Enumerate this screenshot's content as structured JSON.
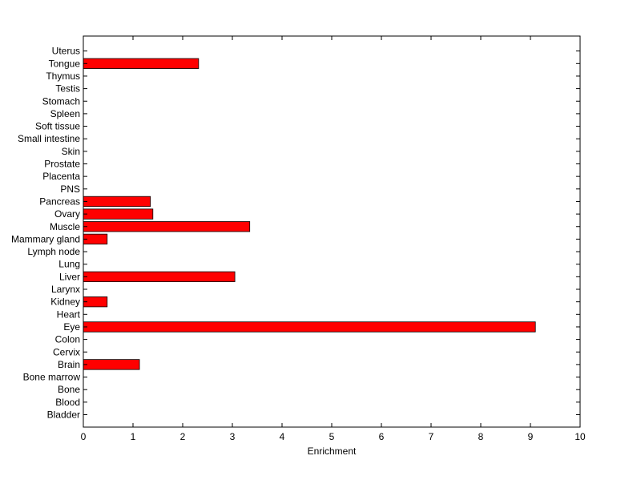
{
  "chart_data": {
    "type": "bar",
    "orientation": "horizontal",
    "categories": [
      "Bladder",
      "Blood",
      "Bone",
      "Bone marrow",
      "Brain",
      "Cervix",
      "Colon",
      "Eye",
      "Heart",
      "Kidney",
      "Larynx",
      "Liver",
      "Lung",
      "Lymph node",
      "Mammary gland",
      "Muscle",
      "Ovary",
      "Pancreas",
      "PNS",
      "Placenta",
      "Prostate",
      "Skin",
      "Small intestine",
      "Soft tissue",
      "Spleen",
      "Stomach",
      "Testis",
      "Thymus",
      "Tongue",
      "Uterus"
    ],
    "values": [
      0,
      0,
      0,
      0,
      1.13,
      0,
      0,
      9.1,
      0,
      0.48,
      0,
      3.05,
      0,
      0,
      0.48,
      3.35,
      1.4,
      1.35,
      0,
      0,
      0,
      0,
      0,
      0,
      0,
      0,
      0,
      0,
      2.32,
      0
    ],
    "xlabel": "Enrichment",
    "ylabel": "",
    "xlim": [
      0,
      10
    ],
    "xticks": [
      "0",
      "1",
      "2",
      "3",
      "4",
      "5",
      "6",
      "7",
      "8",
      "9",
      "10"
    ],
    "grid": false,
    "bar_color": "#ff0000",
    "bar_edge_color": "#000000"
  }
}
